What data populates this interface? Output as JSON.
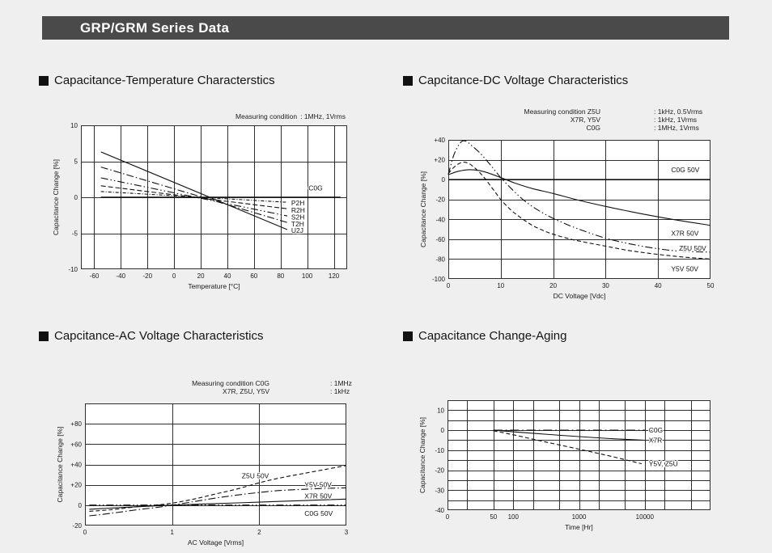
{
  "header": {
    "title": "GRP/GRM Series Data"
  },
  "colors": {
    "header_bg": "#4a4a4a",
    "header_fg": "#ffffff",
    "page_bg": "#efefef",
    "plot_bg": "#ffffff",
    "grid": "#2e2e2e",
    "line": "#111111"
  },
  "sections": [
    {
      "title": "Capacitance-Temperature Characterstics"
    },
    {
      "title": "Capcitance-DC Voltage Characteristics"
    },
    {
      "title": "Capcitance-AC Voltage Characteristics"
    },
    {
      "title": "Capacitance Change-Aging"
    }
  ],
  "chart_data": [
    {
      "id": "temperature",
      "type": "line",
      "measuring_conditions": [
        {
          "label": "Measuring condition",
          "value": ": 1MHz, 1Vrms"
        }
      ],
      "xlabel": "Temperature [°C]",
      "ylabel": "Capacitance Change [%]",
      "xscale": "linear",
      "xlim": [
        -70,
        130
      ],
      "ylim": [
        -10,
        10
      ],
      "xgrid": [
        -60,
        -40,
        -20,
        0,
        20,
        40,
        60,
        80,
        100,
        120
      ],
      "ygrid": [
        -5,
        0,
        5
      ],
      "xticks": [
        {
          "v": -60,
          "label": "-60"
        },
        {
          "v": -40,
          "label": "-40"
        },
        {
          "v": -20,
          "label": "-20"
        },
        {
          "v": 0,
          "label": "0"
        },
        {
          "v": 20,
          "label": "20"
        },
        {
          "v": 40,
          "label": "40"
        },
        {
          "v": 60,
          "label": "60"
        },
        {
          "v": 80,
          "label": "80"
        },
        {
          "v": 100,
          "label": "100"
        },
        {
          "v": 120,
          "label": "120"
        }
      ],
      "yticks": [
        {
          "v": 10,
          "label": "10"
        },
        {
          "v": 5,
          "label": "5"
        },
        {
          "v": 0,
          "label": "0"
        },
        {
          "v": -5,
          "label": "-5"
        },
        {
          "v": -10,
          "label": "-10"
        }
      ],
      "series": [
        {
          "name": "C0G",
          "style": "solid",
          "width": 1.5,
          "points": [
            [
              -55,
              0
            ],
            [
              125,
              0
            ]
          ],
          "label": "C0G",
          "label_at": [
            101,
            1.3
          ],
          "anchor": "start"
        },
        {
          "name": "P2H",
          "style": "short-dash-dot",
          "points": [
            [
              -55,
              0.8
            ],
            [
              85,
              -0.7
            ]
          ],
          "label": "P2H",
          "label_at": [
            88,
            -0.8
          ],
          "anchor": "start"
        },
        {
          "name": "R2H",
          "style": "dash",
          "points": [
            [
              -55,
              1.6
            ],
            [
              85,
              -1.6
            ]
          ],
          "label": "R2H",
          "label_at": [
            88,
            -1.8
          ],
          "anchor": "start"
        },
        {
          "name": "S2H",
          "style": "dash-dot-dot",
          "points": [
            [
              -55,
              2.7
            ],
            [
              85,
              -2.6
            ]
          ],
          "label": "S2H",
          "label_at": [
            88,
            -2.75
          ],
          "anchor": "start"
        },
        {
          "name": "T2H",
          "style": "dash-dot",
          "points": [
            [
              -55,
              4.2
            ],
            [
              85,
              -3.5
            ]
          ],
          "label": "T2H",
          "label_at": [
            88,
            -3.7
          ],
          "anchor": "start"
        },
        {
          "name": "U2J",
          "style": "solid",
          "points": [
            [
              -55,
              6.3
            ],
            [
              85,
              -4.5
            ]
          ],
          "label": "U2J",
          "label_at": [
            88,
            -4.6
          ],
          "anchor": "start"
        }
      ]
    },
    {
      "id": "dc",
      "type": "line",
      "measuring_conditions": [
        {
          "label": "Measuring condition Z5U",
          "value": ": 1kHz, 0.5Vrms"
        },
        {
          "label": "X7R, Y5V",
          "value": ": 1kHz, 1Vrms"
        },
        {
          "label": "C0G",
          "value": ": 1MHz, 1Vrms"
        }
      ],
      "xlabel": "DC Voltage [Vdc]",
      "ylabel": "Capacitance Change [%]",
      "xscale": "linear",
      "xlim": [
        0,
        50
      ],
      "ylim": [
        -100,
        40
      ],
      "xgrid": [
        10,
        20,
        30,
        40
      ],
      "ygrid": [
        20,
        0,
        -20,
        -40,
        -60,
        -80
      ],
      "xticks": [
        {
          "v": 0,
          "label": "0"
        },
        {
          "v": 10,
          "label": "10"
        },
        {
          "v": 20,
          "label": "20"
        },
        {
          "v": 30,
          "label": "30"
        },
        {
          "v": 40,
          "label": "40"
        },
        {
          "v": 50,
          "label": "50"
        }
      ],
      "yticks": [
        {
          "v": 40,
          "label": "+40"
        },
        {
          "v": 20,
          "label": "+20"
        },
        {
          "v": 0,
          "label": "0"
        },
        {
          "v": -20,
          "label": "-20"
        },
        {
          "v": -40,
          "label": "-40"
        },
        {
          "v": -60,
          "label": "-60"
        },
        {
          "v": -80,
          "label": "-80"
        },
        {
          "v": -100,
          "label": "-100"
        }
      ],
      "series": [
        {
          "name": "C0G 50V",
          "style": "solid",
          "width": 1.5,
          "points": [
            [
              0,
              0
            ],
            [
              50,
              0
            ]
          ],
          "label": "C0G 50V",
          "label_at": [
            42.5,
            10
          ],
          "anchor": "start"
        },
        {
          "name": "X7R 50V",
          "style": "solid",
          "points": [
            [
              0,
              5
            ],
            [
              2,
              8.5
            ],
            [
              4,
              10
            ],
            [
              6,
              9
            ],
            [
              8,
              6
            ],
            [
              10,
              2
            ],
            [
              13,
              -4
            ],
            [
              16,
              -9
            ],
            [
              20,
              -14
            ],
            [
              25,
              -21
            ],
            [
              30,
              -27
            ],
            [
              35,
              -32.5
            ],
            [
              40,
              -37.5
            ],
            [
              45,
              -42
            ],
            [
              50,
              -46
            ]
          ],
          "label": "X7R 50V",
          "label_at": [
            42.5,
            -54
          ],
          "anchor": "start"
        },
        {
          "name": "Z5U 50V",
          "style": "dash-dot-dot",
          "points": [
            [
              0,
              5
            ],
            [
              1,
              24
            ],
            [
              2,
              35
            ],
            [
              2.8,
              39
            ],
            [
              3.6,
              38
            ],
            [
              4.5,
              34
            ],
            [
              6,
              27
            ],
            [
              8,
              15
            ],
            [
              10,
              2
            ],
            [
              12,
              -9
            ],
            [
              14,
              -19
            ],
            [
              16,
              -27
            ],
            [
              18,
              -33.5
            ],
            [
              20,
              -39
            ],
            [
              23,
              -46
            ],
            [
              26,
              -52
            ],
            [
              30,
              -59
            ],
            [
              34,
              -64
            ],
            [
              38,
              -68
            ],
            [
              42,
              -71
            ],
            [
              46,
              -72.5
            ],
            [
              50,
              -73
            ]
          ],
          "label": "Z5U 50V",
          "label_at": [
            44,
            -69
          ],
          "anchor": "start"
        },
        {
          "name": "Y5V 50V",
          "style": "dashed",
          "points": [
            [
              0,
              6
            ],
            [
              1,
              12
            ],
            [
              2,
              16
            ],
            [
              3,
              17.5
            ],
            [
              4,
              16
            ],
            [
              5,
              12
            ],
            [
              6,
              7
            ],
            [
              7,
              1
            ],
            [
              8,
              -6
            ],
            [
              9,
              -13
            ],
            [
              10,
              -20
            ],
            [
              12,
              -31
            ],
            [
              14,
              -39
            ],
            [
              16,
              -46
            ],
            [
              18,
              -51
            ],
            [
              20,
              -55
            ],
            [
              23,
              -59.5
            ],
            [
              26,
              -63
            ],
            [
              30,
              -67
            ],
            [
              34,
              -71
            ],
            [
              38,
              -74
            ],
            [
              42,
              -76.5
            ],
            [
              46,
              -78.5
            ],
            [
              50,
              -80
            ]
          ],
          "label": "Y5V 50V",
          "label_at": [
            42.5,
            -90
          ],
          "anchor": "start"
        }
      ]
    },
    {
      "id": "ac",
      "type": "line",
      "measuring_conditions": [
        {
          "label": "Measuring condition C0G",
          "value": ": 1MHz"
        },
        {
          "label": "X7R, Z5U, Y5V",
          "value": ": 1kHz"
        }
      ],
      "xlabel": "AC Voltage [Vrms]",
      "ylabel": "Capacitance Change [%]",
      "xscale": "linear",
      "xlim": [
        0,
        3
      ],
      "ylim": [
        -20,
        100
      ],
      "xgrid": [
        1,
        2
      ],
      "ygrid": [
        80,
        60,
        40,
        20,
        0
      ],
      "xticks": [
        {
          "v": 0,
          "label": "0"
        },
        {
          "v": 1,
          "label": "1"
        },
        {
          "v": 2,
          "label": "2"
        },
        {
          "v": 3,
          "label": "3"
        }
      ],
      "yticks": [
        {
          "v": 80,
          "label": "+80"
        },
        {
          "v": 60,
          "label": "+60"
        },
        {
          "v": 40,
          "label": "+40"
        },
        {
          "v": 20,
          "label": "+20"
        },
        {
          "v": 0,
          "label": "0"
        },
        {
          "v": -20,
          "label": "-20"
        }
      ],
      "series": [
        {
          "name": "Z5U 50V",
          "style": "dashed",
          "points": [
            [
              0.05,
              -6
            ],
            [
              0.3,
              -4.5
            ],
            [
              0.6,
              -1.5
            ],
            [
              0.8,
              0
            ],
            [
              1,
              2
            ],
            [
              1.25,
              6
            ],
            [
              1.5,
              11
            ],
            [
              1.75,
              16
            ],
            [
              2,
              22
            ],
            [
              2.25,
              27
            ],
            [
              2.5,
              31
            ],
            [
              2.75,
              35
            ],
            [
              3,
              39
            ]
          ],
          "label": "Z5U 50V",
          "label_at": [
            1.8,
            29
          ],
          "anchor": "start"
        },
        {
          "name": "Y5V 50V",
          "style": "dash-dot",
          "points": [
            [
              0.05,
              -10.5
            ],
            [
              0.3,
              -8
            ],
            [
              0.6,
              -4.5
            ],
            [
              0.8,
              -2.5
            ],
            [
              1,
              0
            ],
            [
              1.25,
              3.5
            ],
            [
              1.5,
              7
            ],
            [
              1.75,
              10
            ],
            [
              2,
              12.5
            ],
            [
              2.25,
              14.5
            ],
            [
              2.5,
              15.5
            ],
            [
              2.75,
              16.5
            ],
            [
              3,
              17
            ]
          ],
          "label": "Y5V 50V",
          "label_at": [
            2.52,
            20
          ],
          "anchor": "start"
        },
        {
          "name": "X7R 50V",
          "style": "solid",
          "points": [
            [
              0.05,
              -4
            ],
            [
              0.5,
              -2
            ],
            [
              1,
              0
            ],
            [
              1.5,
              1.5
            ],
            [
              2,
              3
            ],
            [
              2.5,
              4.5
            ],
            [
              3,
              6
            ]
          ],
          "label": "X7R 50V",
          "label_at": [
            2.52,
            9
          ],
          "anchor": "start"
        },
        {
          "name": "C0G 50V",
          "style": "dash-dot-dot",
          "width": 1.3,
          "points": [
            [
              0.05,
              0
            ],
            [
              3,
              0
            ]
          ],
          "label": "C0G 50V",
          "label_at": [
            2.52,
            -8
          ],
          "anchor": "start"
        }
      ]
    },
    {
      "id": "aging",
      "type": "line",
      "measuring_conditions": [],
      "xlabel": "Time [Hr]",
      "ylabel": "Capacitance Change [%]",
      "xscale": "log",
      "xlim": [
        10,
        100000
      ],
      "ylim": [
        -40,
        15
      ],
      "xgrid": [
        20,
        50,
        100,
        200,
        500,
        1000,
        2000,
        5000,
        10000,
        20000,
        50000
      ],
      "ygrid": [
        10,
        5,
        0,
        -5,
        -10,
        -15,
        -20,
        -25,
        -30,
        -35
      ],
      "xticks": [
        {
          "v": 10,
          "label": "0"
        },
        {
          "v": 50,
          "label": "50"
        },
        {
          "v": 100,
          "label": "100"
        },
        {
          "v": 1000,
          "label": "1000"
        },
        {
          "v": 10000,
          "label": "10000"
        }
      ],
      "yticks": [
        {
          "v": 10,
          "label": "10"
        },
        {
          "v": 0,
          "label": "0"
        },
        {
          "v": -10,
          "label": "-10"
        },
        {
          "v": -20,
          "label": "-20"
        },
        {
          "v": -30,
          "label": "-30"
        },
        {
          "v": -40,
          "label": "-40"
        }
      ],
      "series": [
        {
          "name": "C0G",
          "style": "long-dash-dot",
          "points": [
            [
              50,
              0
            ],
            [
              10000,
              0
            ]
          ],
          "label": "C0G",
          "label_at": [
            11500,
            0
          ],
          "anchor": "start"
        },
        {
          "name": "X7R",
          "style": "solid",
          "points": [
            [
              50,
              0
            ],
            [
              100,
              -0.8
            ],
            [
              300,
              -2
            ],
            [
              1000,
              -3.2
            ],
            [
              3000,
              -4.2
            ],
            [
              10000,
              -5
            ]
          ],
          "label": "X7R",
          "label_at": [
            11500,
            -5
          ],
          "anchor": "start"
        },
        {
          "name": "Y5V, Z5U",
          "style": "dashed",
          "points": [
            [
              50,
              -0.3
            ],
            [
              100,
              -2.3
            ],
            [
              300,
              -5.8
            ],
            [
              1000,
              -9.5
            ],
            [
              3000,
              -13
            ],
            [
              9000,
              -16.8
            ]
          ],
          "label": "Y5V, Z5U",
          "label_at": [
            11500,
            -16.8
          ],
          "anchor": "start"
        }
      ]
    }
  ]
}
